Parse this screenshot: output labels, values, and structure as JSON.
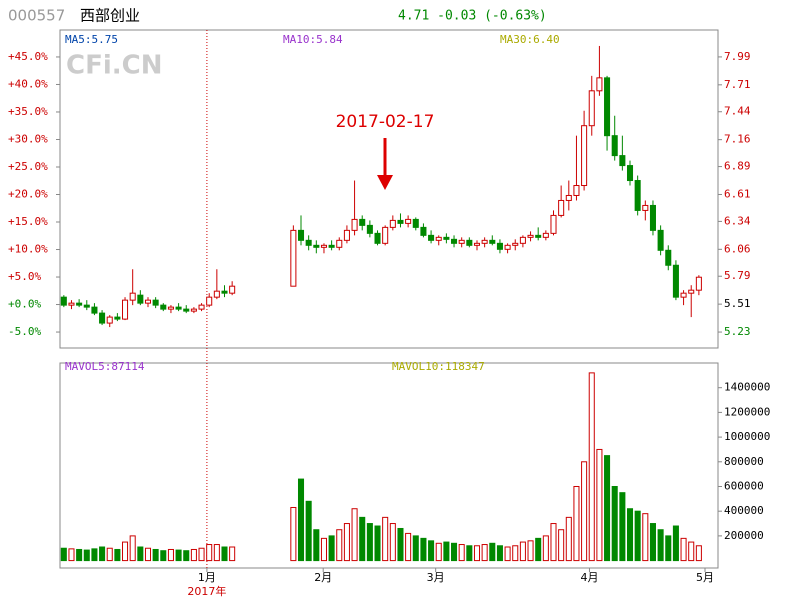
{
  "chart_data": {
    "type": "candlestick",
    "code": "000557",
    "name": "西部创业",
    "quote": "4.71 -0.03 (-0.63%)",
    "watermark": "CFi.CN",
    "annotation": "2017-02-17",
    "ma_labels": [
      "MA5:5.75",
      "MA10:5.84",
      "MA30:6.40"
    ],
    "vol_labels": [
      "MAVOL5:87114",
      "MAVOL10:118347"
    ],
    "year_label": "2017年",
    "xlim": [
      -0.5,
      85.5
    ],
    "xticks": [
      {
        "value": 18.7,
        "label": "1月"
      },
      {
        "value": 33.9,
        "label": "2月"
      },
      {
        "value": 48.6,
        "label": "3月"
      },
      {
        "value": 68.7,
        "label": "4月"
      },
      {
        "value": 83.8,
        "label": "5月"
      }
    ],
    "up_color": "#cc0000",
    "down_color": "#008800",
    "ylim": [
      5.07,
      8.26
    ],
    "yticks": [
      7.99,
      7.71,
      7.44,
      7.16,
      6.89,
      6.61,
      6.34,
      6.06,
      5.79,
      5.51,
      5.23
    ],
    "y2lim": [
      -7.9,
      49.9
    ],
    "y2ticks": [
      {
        "value": 45,
        "label": "+45.0%"
      },
      {
        "value": 40,
        "label": "+40.0%"
      },
      {
        "value": 35,
        "label": "+35.0%"
      },
      {
        "value": 30,
        "label": "+30.0%"
      },
      {
        "value": 25,
        "label": "+25.0%"
      },
      {
        "value": 20,
        "label": "+20.0%"
      },
      {
        "value": 15,
        "label": "+15.0%"
      },
      {
        "value": 10,
        "label": "+10.0%"
      },
      {
        "value": 5,
        "label": "+5.0%"
      },
      {
        "value": 0,
        "label": "+0.0%"
      },
      {
        "value": -5,
        "label": "-5.0%"
      }
    ],
    "x": [
      0,
      1,
      2,
      3,
      4,
      5,
      6,
      7,
      8,
      9,
      10,
      11,
      12,
      13,
      14,
      15,
      16,
      17,
      18,
      19,
      20,
      21,
      22,
      30,
      31,
      32,
      33,
      34,
      35,
      36,
      37,
      38,
      39,
      40,
      41,
      42,
      43,
      44,
      45,
      46,
      47,
      48,
      49,
      50,
      51,
      52,
      53,
      54,
      55,
      56,
      57,
      58,
      59,
      60,
      61,
      62,
      63,
      64,
      65,
      66,
      67,
      68,
      69,
      70,
      71,
      72,
      73,
      74,
      75,
      76,
      77,
      78,
      79,
      80,
      81,
      82,
      83
    ],
    "candles": [
      [
        5.58,
        5.6,
        5.48,
        5.5
      ],
      [
        5.5,
        5.55,
        5.46,
        5.52
      ],
      [
        5.52,
        5.56,
        5.48,
        5.5
      ],
      [
        5.5,
        5.55,
        5.45,
        5.48
      ],
      [
        5.48,
        5.52,
        5.4,
        5.42
      ],
      [
        5.42,
        5.45,
        5.3,
        5.32
      ],
      [
        5.32,
        5.4,
        5.28,
        5.38
      ],
      [
        5.38,
        5.42,
        5.34,
        5.36
      ],
      [
        5.36,
        5.58,
        5.35,
        5.55
      ],
      [
        5.55,
        5.86,
        5.5,
        5.62
      ],
      [
        5.6,
        5.65,
        5.5,
        5.52
      ],
      [
        5.52,
        5.58,
        5.48,
        5.55
      ],
      [
        5.55,
        5.58,
        5.47,
        5.5
      ],
      [
        5.5,
        5.52,
        5.44,
        5.46
      ],
      [
        5.46,
        5.5,
        5.42,
        5.48
      ],
      [
        5.48,
        5.52,
        5.44,
        5.46
      ],
      [
        5.46,
        5.5,
        5.42,
        5.44
      ],
      [
        5.44,
        5.48,
        5.42,
        5.46
      ],
      [
        5.46,
        5.52,
        5.44,
        5.5
      ],
      [
        5.5,
        5.62,
        5.48,
        5.58
      ],
      [
        5.58,
        5.86,
        5.56,
        5.64
      ],
      [
        5.64,
        5.7,
        5.58,
        5.62
      ],
      [
        5.62,
        5.74,
        5.6,
        5.69
      ],
      [
        5.69,
        6.3,
        5.69,
        6.25
      ],
      [
        6.25,
        6.4,
        6.1,
        6.15
      ],
      [
        6.15,
        6.2,
        6.05,
        6.1
      ],
      [
        6.1,
        6.15,
        6.02,
        6.08
      ],
      [
        6.08,
        6.12,
        6.02,
        6.1
      ],
      [
        6.1,
        6.15,
        6.05,
        6.08
      ],
      [
        6.08,
        6.18,
        6.05,
        6.15
      ],
      [
        6.15,
        6.3,
        6.12,
        6.25
      ],
      [
        6.25,
        6.75,
        6.2,
        6.36
      ],
      [
        6.36,
        6.4,
        6.25,
        6.3
      ],
      [
        6.3,
        6.35,
        6.18,
        6.22
      ],
      [
        6.22,
        6.25,
        6.1,
        6.12
      ],
      [
        6.12,
        6.3,
        6.1,
        6.28
      ],
      [
        6.28,
        6.4,
        6.25,
        6.35
      ],
      [
        6.35,
        6.42,
        6.28,
        6.32
      ],
      [
        6.32,
        6.4,
        6.28,
        6.36
      ],
      [
        6.36,
        6.38,
        6.25,
        6.28
      ],
      [
        6.28,
        6.32,
        6.18,
        6.2
      ],
      [
        6.2,
        6.25,
        6.12,
        6.15
      ],
      [
        6.15,
        6.2,
        6.1,
        6.18
      ],
      [
        6.18,
        6.22,
        6.12,
        6.16
      ],
      [
        6.16,
        6.2,
        6.08,
        6.12
      ],
      [
        6.12,
        6.18,
        6.08,
        6.15
      ],
      [
        6.15,
        6.18,
        6.08,
        6.1
      ],
      [
        6.1,
        6.15,
        6.05,
        6.12
      ],
      [
        6.12,
        6.18,
        6.08,
        6.15
      ],
      [
        6.15,
        6.2,
        6.1,
        6.12
      ],
      [
        6.12,
        6.16,
        6.02,
        6.06
      ],
      [
        6.06,
        6.12,
        6.02,
        6.1
      ],
      [
        6.1,
        6.16,
        6.05,
        6.12
      ],
      [
        6.12,
        6.2,
        6.08,
        6.18
      ],
      [
        6.18,
        6.24,
        6.14,
        6.2
      ],
      [
        6.2,
        6.28,
        6.15,
        6.18
      ],
      [
        6.18,
        6.25,
        6.15,
        6.22
      ],
      [
        6.22,
        6.45,
        6.2,
        6.4
      ],
      [
        6.4,
        6.7,
        6.38,
        6.55
      ],
      [
        6.55,
        6.75,
        6.45,
        6.6
      ],
      [
        6.6,
        7.2,
        6.55,
        6.7
      ],
      [
        6.7,
        7.45,
        6.65,
        7.3
      ],
      [
        7.3,
        7.8,
        7.2,
        7.65
      ],
      [
        7.65,
        8.1,
        7.6,
        7.78
      ],
      [
        7.78,
        7.8,
        7.05,
        7.2
      ],
      [
        7.2,
        7.4,
        6.95,
        7.0
      ],
      [
        7.0,
        7.2,
        6.85,
        6.9
      ],
      [
        6.9,
        6.95,
        6.7,
        6.75
      ],
      [
        6.75,
        6.8,
        6.4,
        6.45
      ],
      [
        6.45,
        6.55,
        6.35,
        6.5
      ],
      [
        6.5,
        6.55,
        6.2,
        6.25
      ],
      [
        6.25,
        6.3,
        6.0,
        6.05
      ],
      [
        6.05,
        6.1,
        5.85,
        5.9
      ],
      [
        5.9,
        5.95,
        5.55,
        5.58
      ],
      [
        5.58,
        5.65,
        5.5,
        5.62
      ],
      [
        5.62,
        5.7,
        5.38,
        5.65
      ],
      [
        5.65,
        5.8,
        5.6,
        5.78
      ]
    ],
    "volume": {
      "ylim": [
        -60000,
        1600000
      ],
      "yticks": [
        200000,
        400000,
        600000,
        800000,
        1000000,
        1200000,
        1400000
      ],
      "values": [
        100000,
        95000,
        90000,
        85000,
        95000,
        110000,
        100000,
        90000,
        150000,
        200000,
        110000,
        100000,
        90000,
        80000,
        90000,
        85000,
        80000,
        90000,
        100000,
        130000,
        130000,
        110000,
        110000,
        430000,
        660000,
        480000,
        250000,
        180000,
        200000,
        250000,
        300000,
        420000,
        350000,
        300000,
        280000,
        350000,
        300000,
        260000,
        220000,
        200000,
        180000,
        160000,
        140000,
        150000,
        140000,
        130000,
        120000,
        120000,
        130000,
        140000,
        120000,
        110000,
        120000,
        150000,
        160000,
        180000,
        200000,
        300000,
        250000,
        350000,
        600000,
        800000,
        1520000,
        900000,
        850000,
        600000,
        550000,
        420000,
        400000,
        380000,
        300000,
        250000,
        200000,
        280000,
        180000,
        150000,
        120000
      ]
    }
  }
}
